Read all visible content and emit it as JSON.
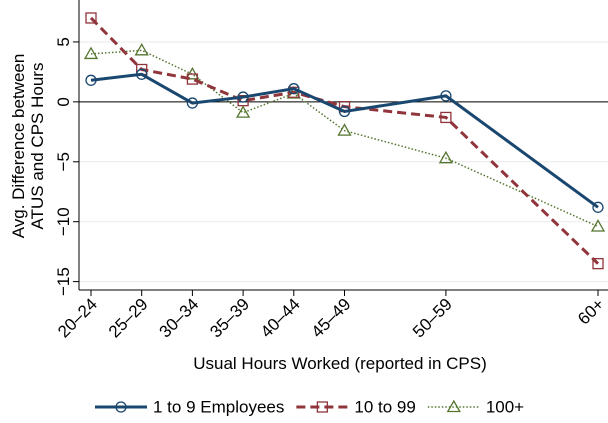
{
  "chart_data": {
    "type": "line",
    "x_label": "Usual Hours Worked (reported in CPS)",
    "y_label": [
      "Avg. Difference between",
      "ATUS and CPS Hours"
    ],
    "categories": [
      "20–24",
      "25–29",
      "30–34",
      "35–39",
      "40–44",
      "45–49",
      "50–59",
      "60+"
    ],
    "series": [
      {
        "name": "1 to 9 Employees",
        "color": "#1a476f",
        "marker": "circle",
        "dash": "solid",
        "values": [
          1.8,
          2.3,
          -0.1,
          0.4,
          1.1,
          -0.8,
          0.5,
          -8.8
        ]
      },
      {
        "name": "10 to 99",
        "color": "#90353b",
        "marker": "square",
        "dash": "dashed",
        "values": [
          7.0,
          2.7,
          1.9,
          0.1,
          0.8,
          -0.4,
          -1.3,
          -13.5
        ]
      },
      {
        "name": "100+",
        "color": "#55752f",
        "marker": "triangle",
        "dash": "dotted",
        "values": [
          4.0,
          4.3,
          2.3,
          -0.9,
          0.7,
          -2.4,
          -4.7,
          -10.4
        ]
      }
    ],
    "ylim": [
      -15.7,
      8.5
    ],
    "yticks": [
      {
        "value": -15,
        "label": "−15"
      },
      {
        "value": -10,
        "label": "−10"
      },
      {
        "value": -5,
        "label": "−5"
      },
      0,
      5
    ],
    "reference_line": 0,
    "grid": true
  }
}
